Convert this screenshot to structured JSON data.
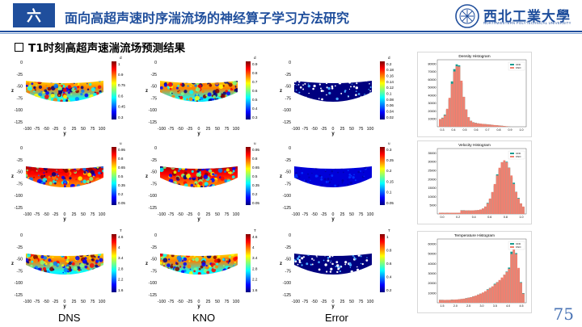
{
  "header": {
    "section_number": "六",
    "title": "面向高超声速时序湍流场的神经算子学习方法研究",
    "logo_text": "西北工業大學",
    "logo_subtitle": "NORTHWESTERN POLYTECHNICAL UNIVERSITY"
  },
  "subheading": "T1时刻高超声速湍流场预测结果",
  "columns": [
    "DNS",
    "KNO",
    "Error"
  ],
  "page_number": "75",
  "axes": {
    "ytick_labels": [
      "0",
      "-25",
      "-50",
      "-75",
      "-100",
      "-125"
    ],
    "xtick_labels": [
      "-100",
      "-75",
      "-50",
      "-25",
      "0",
      "25",
      "50",
      "75",
      "100"
    ],
    "xlabel": "y",
    "ylabel": "z"
  },
  "rows": [
    {
      "var": "d",
      "dns_ticks": [
        "1",
        "0.9",
        "0.75",
        "0.6",
        "0.45",
        "0.3"
      ],
      "kno_ticks": [
        "0.9",
        "0.8",
        "0.7",
        "0.6",
        "0.5",
        "0.4",
        "0.3"
      ],
      "err_ticks": [
        "0.2",
        "0.18",
        "0.16",
        "0.14",
        "0.12",
        "0.1",
        "0.08",
        "0.06",
        "0.04",
        "0.02"
      ]
    },
    {
      "var": "u",
      "dns_ticks": [
        "0.95",
        "0.8",
        "0.65",
        "0.5",
        "0.35",
        "0.2",
        "0.05"
      ],
      "kno_ticks": [
        "0.95",
        "0.8",
        "0.65",
        "0.5",
        "0.35",
        "0.2",
        "0.05"
      ],
      "err_ticks": [
        "0.3",
        "0.25",
        "0.2",
        "0.15",
        "0.1",
        "0.05"
      ]
    },
    {
      "var": "T",
      "dns_ticks": [
        "4.6",
        "4",
        "3.4",
        "2.8",
        "2.2",
        "1.6"
      ],
      "kno_ticks": [
        "4.6",
        "4",
        "3.4",
        "2.8",
        "2.2",
        "1.6"
      ],
      "err_ticks": [
        "1",
        "0.8",
        "0.6",
        "0.4",
        "0.2"
      ]
    }
  ],
  "histograms": [
    {
      "title": "Density Histogram",
      "legend": [
        "CFD",
        "KNO"
      ],
      "xticks": [
        "0.3",
        "0.4",
        "0.5",
        "0.6",
        "0.7",
        "0.8",
        "0.9",
        "1.0"
      ],
      "yticks": [
        "10000",
        "20000",
        "30000",
        "40000",
        "50000",
        "60000",
        "70000",
        "80000"
      ]
    },
    {
      "title": "Velocity Histogram",
      "legend": [
        "CFD",
        "KNO"
      ],
      "xticks": [
        "0.0",
        "0.2",
        "0.4",
        "0.6",
        "0.8",
        "1.0"
      ],
      "yticks": [
        "5000",
        "10000",
        "15000",
        "20000",
        "25000",
        "30000",
        "35000"
      ]
    },
    {
      "title": "Temperature Histogram",
      "legend": [
        "CFD",
        "KNO"
      ],
      "xticks": [
        "1.5",
        "2.0",
        "2.5",
        "3.0",
        "3.5",
        "4.0",
        "4.5"
      ],
      "yticks": [
        "10000",
        "20000",
        "30000",
        "40000",
        "50000",
        "60000"
      ]
    }
  ],
  "colors": {
    "brand": "#1f4e9c",
    "cfd": "#1a9b8f",
    "kno": "#f08070"
  }
}
